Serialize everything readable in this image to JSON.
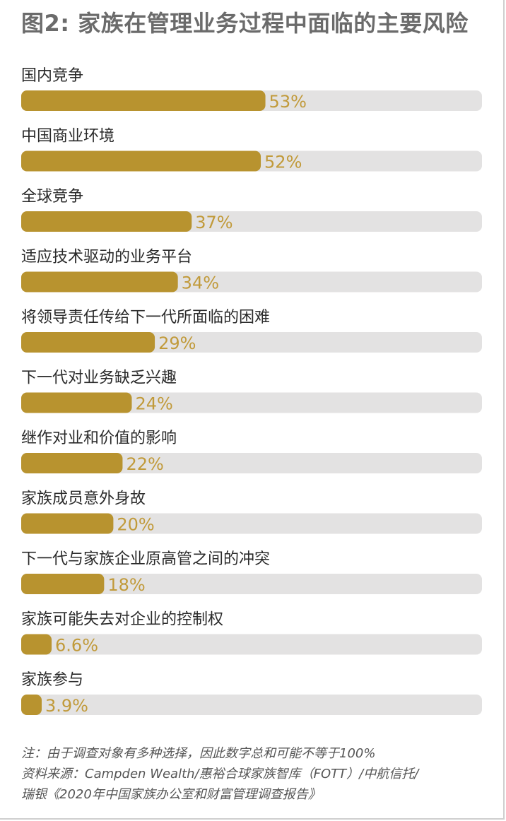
{
  "colors": {
    "bar_fill": "#b8932f",
    "track": "#e3e2e2",
    "value_text": "#c19a3a",
    "label_text": "#2a2a2a",
    "title_text": "#6b6b6b"
  },
  "chart_data": {
    "type": "bar",
    "orientation": "horizontal",
    "title": "图2: 家族在管理业务过程中面临的主要风险",
    "xlim": [
      0,
      100
    ],
    "value_suffix": "%",
    "categories": [
      "国内竞争",
      "中国商业环境",
      "全球竞争",
      "适应技术驱动的业务平台",
      "将领导责任传给下一代所面临的困难",
      "下一代对业务缺乏兴趣",
      "继作对业和价值的影响",
      "家族成员意外身故",
      "下一代与家族企业原高管之间的冲突",
      "家族可能失去对企业的控制权",
      "家族参与"
    ],
    "values": [
      53,
      52,
      37,
      34,
      29,
      24,
      22,
      20,
      18,
      6.6,
      3.9
    ],
    "value_labels": [
      "53%",
      "52%",
      "37%",
      "34%",
      "29%",
      "24%",
      "22%",
      "20%",
      "18%",
      "6.6%",
      "3.9%"
    ]
  },
  "notes": {
    "line1": "注：由于调查对象有多种选择，因此数字总和可能不等于100%",
    "line2": "资料来源：Campden Wealth/惠裕合球家族智库（FOTT）/中航信托/",
    "line3": "瑞银《2020年中国家族办公室和财富管理调查报告》"
  }
}
